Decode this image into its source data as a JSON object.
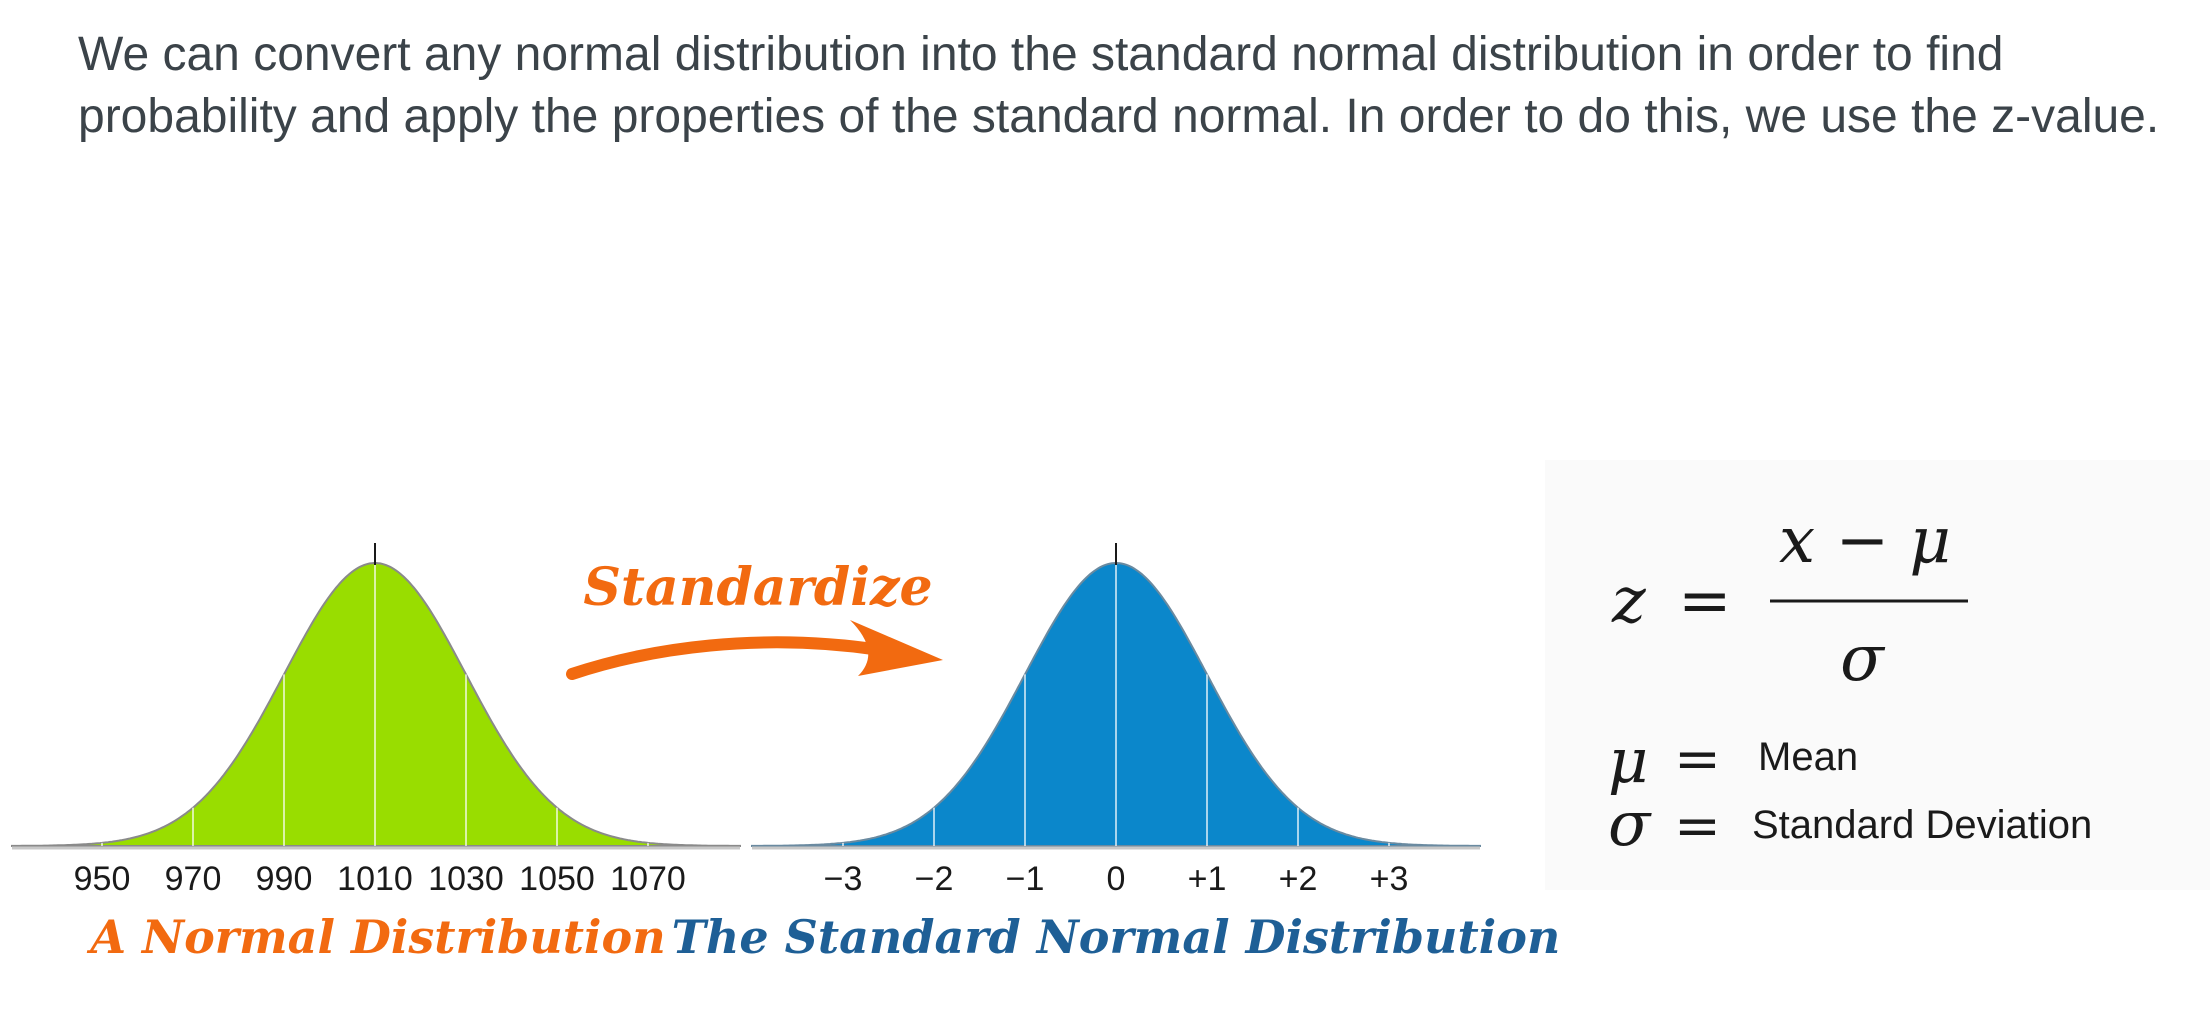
{
  "intro_text": "We can convert any normal distribution into the standard normal distribution in order to find probability and apply the properties of the standard normal. In order to do this, we use the z-value.",
  "left_curve": {
    "caption": "A Normal Distribution",
    "ticks": [
      "950",
      "970",
      "990",
      "1010",
      "1030",
      "1050",
      "1070"
    ],
    "highlight_index": 3,
    "fill_color": "#99dd00"
  },
  "arrow": {
    "label": "Standardize",
    "color": "#f26a10"
  },
  "right_curve": {
    "caption": "The Standard Normal Distribution",
    "ticks": [
      "−3",
      "−2",
      "−1",
      "0",
      "+1",
      "+2",
      "+3"
    ],
    "highlight_index": 3,
    "fill_color": "#0b87cb"
  },
  "formula": {
    "lhs": "z",
    "equals": "=",
    "numerator": "x − μ",
    "denominator": "σ"
  },
  "legend": [
    {
      "symbol": "μ",
      "equals": "=",
      "meaning": "Mean"
    },
    {
      "symbol": "σ",
      "equals": "=",
      "meaning": "Standard Deviation"
    }
  ],
  "colors": {
    "caption_left": "#f26a10",
    "caption_right": "#1e5f96",
    "highlight_tick": "#e8344a",
    "text": "#3b4349"
  }
}
